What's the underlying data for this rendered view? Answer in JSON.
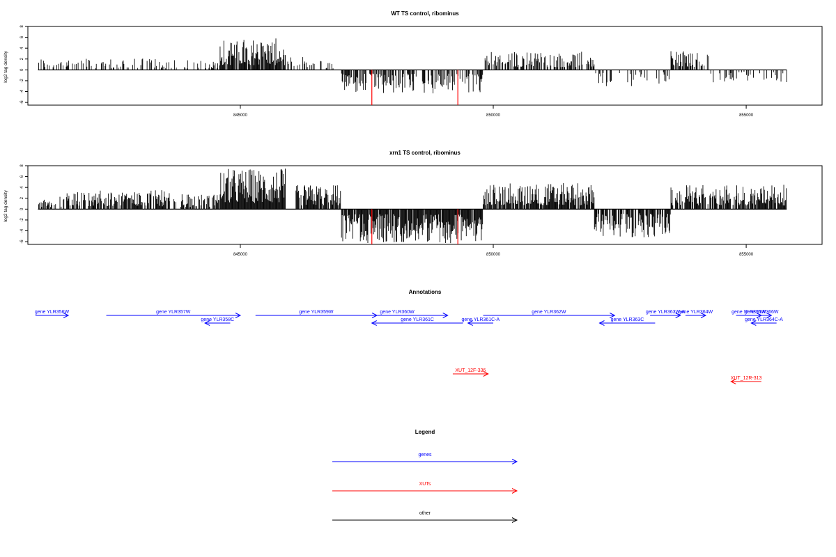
{
  "colors": {
    "genes": "#0000ff",
    "xuts": "#ff0000",
    "other": "#000000",
    "marker": "#ff0000",
    "signal": "#000000"
  },
  "chart_data": [
    {
      "type": "bar",
      "title": "WT TS control, ribominus",
      "ylabel": "log2 tag density",
      "xlim": [
        840800,
        856500
      ],
      "ylim": [
        -6.5,
        8
      ],
      "yticks": [
        -6,
        -4,
        -2,
        0,
        2,
        4,
        6,
        8
      ],
      "xticks": [
        845000,
        850000,
        855000
      ],
      "signal_start": 841000,
      "signal_end": 855800,
      "profile": [
        {
          "x": [
            841000,
            843400
          ],
          "max": 2.2,
          "density": 0.35
        },
        {
          "x": [
            843400,
            844600
          ],
          "max": 1.8,
          "density": 0.35
        },
        {
          "x": [
            844600,
            845900
          ],
          "max": 5.8,
          "density": 0.9
        },
        {
          "x": [
            845900,
            846300
          ],
          "max": 2.4,
          "density": 0.5
        },
        {
          "x": [
            846300,
            847000
          ],
          "max": 1.8,
          "density": 0.3
        },
        {
          "x": [
            847000,
            849800
          ],
          "max": -4.5,
          "density": 0.55
        },
        {
          "x": [
            849800,
            852000
          ],
          "max": 3.4,
          "density": 0.55
        },
        {
          "x": [
            852000,
            853500
          ],
          "max": -3.0,
          "density": 0.3
        },
        {
          "x": [
            853500,
            854300
          ],
          "max": 3.5,
          "density": 0.45
        },
        {
          "x": [
            854300,
            855800
          ],
          "max": -2.3,
          "density": 0.25
        }
      ],
      "markers": [
        {
          "x": 847600,
          "value": -6.5
        },
        {
          "x": 849300,
          "value": -6.5
        }
      ]
    },
    {
      "type": "bar",
      "title": "xrn1 TS control, ribominus",
      "ylabel": "log2 tag density",
      "xlim": [
        840800,
        856500
      ],
      "ylim": [
        -6.5,
        8
      ],
      "yticks": [
        -6,
        -4,
        -2,
        0,
        2,
        4,
        6,
        8
      ],
      "xticks": [
        845000,
        850000,
        855000
      ],
      "signal_start": 841000,
      "signal_end": 855800,
      "profile": [
        {
          "x": [
            841000,
            841500
          ],
          "max": 2.5,
          "density": 0.5
        },
        {
          "x": [
            841500,
            843600
          ],
          "max": 3.5,
          "density": 0.7
        },
        {
          "x": [
            843600,
            844600
          ],
          "max": 2.8,
          "density": 0.6
        },
        {
          "x": [
            844600,
            845900
          ],
          "max": 7.5,
          "density": 1.0
        },
        {
          "x": [
            846100,
            847000
          ],
          "max": 4.5,
          "density": 0.85
        },
        {
          "x": [
            847000,
            849800
          ],
          "max": -6.3,
          "density": 0.95
        },
        {
          "x": [
            849800,
            852000
          ],
          "max": 4.8,
          "density": 0.9
        },
        {
          "x": [
            852000,
            853500
          ],
          "max": -5.2,
          "density": 0.8
        },
        {
          "x": [
            853500,
            855800
          ],
          "max": 4.5,
          "density": 0.8
        }
      ],
      "markers": [
        {
          "x": 847600,
          "value": -6.5
        },
        {
          "x": 849300,
          "value": -6.5
        }
      ]
    }
  ],
  "annotations": {
    "title": "Annotations",
    "genes": [
      {
        "label": "gene YLR356W",
        "start": 840950,
        "end": 841600,
        "strand": "+",
        "row": 0
      },
      {
        "label": "gene YLR357W",
        "start": 842350,
        "end": 845000,
        "strand": "+",
        "row": 0
      },
      {
        "label": "gene YLR358C",
        "start": 844300,
        "end": 844800,
        "strand": "-",
        "row": 1
      },
      {
        "label": "gene YLR359W",
        "start": 845300,
        "end": 847700,
        "strand": "+",
        "row": 0
      },
      {
        "label": "gene YLR360W",
        "start": 847100,
        "end": 849100,
        "strand": "+",
        "row": 0
      },
      {
        "label": "gene YLR361C",
        "start": 847600,
        "end": 849400,
        "strand": "-",
        "row": 1
      },
      {
        "label": "gene YLR361C-A",
        "start": 849500,
        "end": 850000,
        "strand": "-",
        "row": 1
      },
      {
        "label": "gene YLR362W",
        "start": 849800,
        "end": 852400,
        "strand": "+",
        "row": 0
      },
      {
        "label": "gene YLR363C",
        "start": 852100,
        "end": 853200,
        "strand": "-",
        "row": 1
      },
      {
        "label": "gene YLR363W-A",
        "start": 853100,
        "end": 853700,
        "strand": "+",
        "row": 0
      },
      {
        "label": "gene YLR364W",
        "start": 853800,
        "end": 854200,
        "strand": "+",
        "row": 0
      },
      {
        "label": "gene YLR365W",
        "start": 854800,
        "end": 855300,
        "strand": "+",
        "row": 0
      },
      {
        "label": "gene YLR366W",
        "start": 855100,
        "end": 855500,
        "strand": "+",
        "row": 0
      },
      {
        "label": "gene YLR364C-A",
        "start": 855100,
        "end": 855600,
        "strand": "-",
        "row": 1
      }
    ],
    "xuts": [
      {
        "label": "XUT_12F-336",
        "start": 849200,
        "end": 849900,
        "strand": "+",
        "row": 2
      },
      {
        "label": "XUT_12R-313",
        "start": 854700,
        "end": 855300,
        "strand": "-",
        "row": 3
      }
    ]
  },
  "legend": {
    "title": "Legend",
    "items": [
      {
        "label": "genes",
        "color": "#0000ff"
      },
      {
        "label": "XUTs",
        "color": "#ff0000"
      },
      {
        "label": "other",
        "color": "#000000"
      }
    ]
  }
}
